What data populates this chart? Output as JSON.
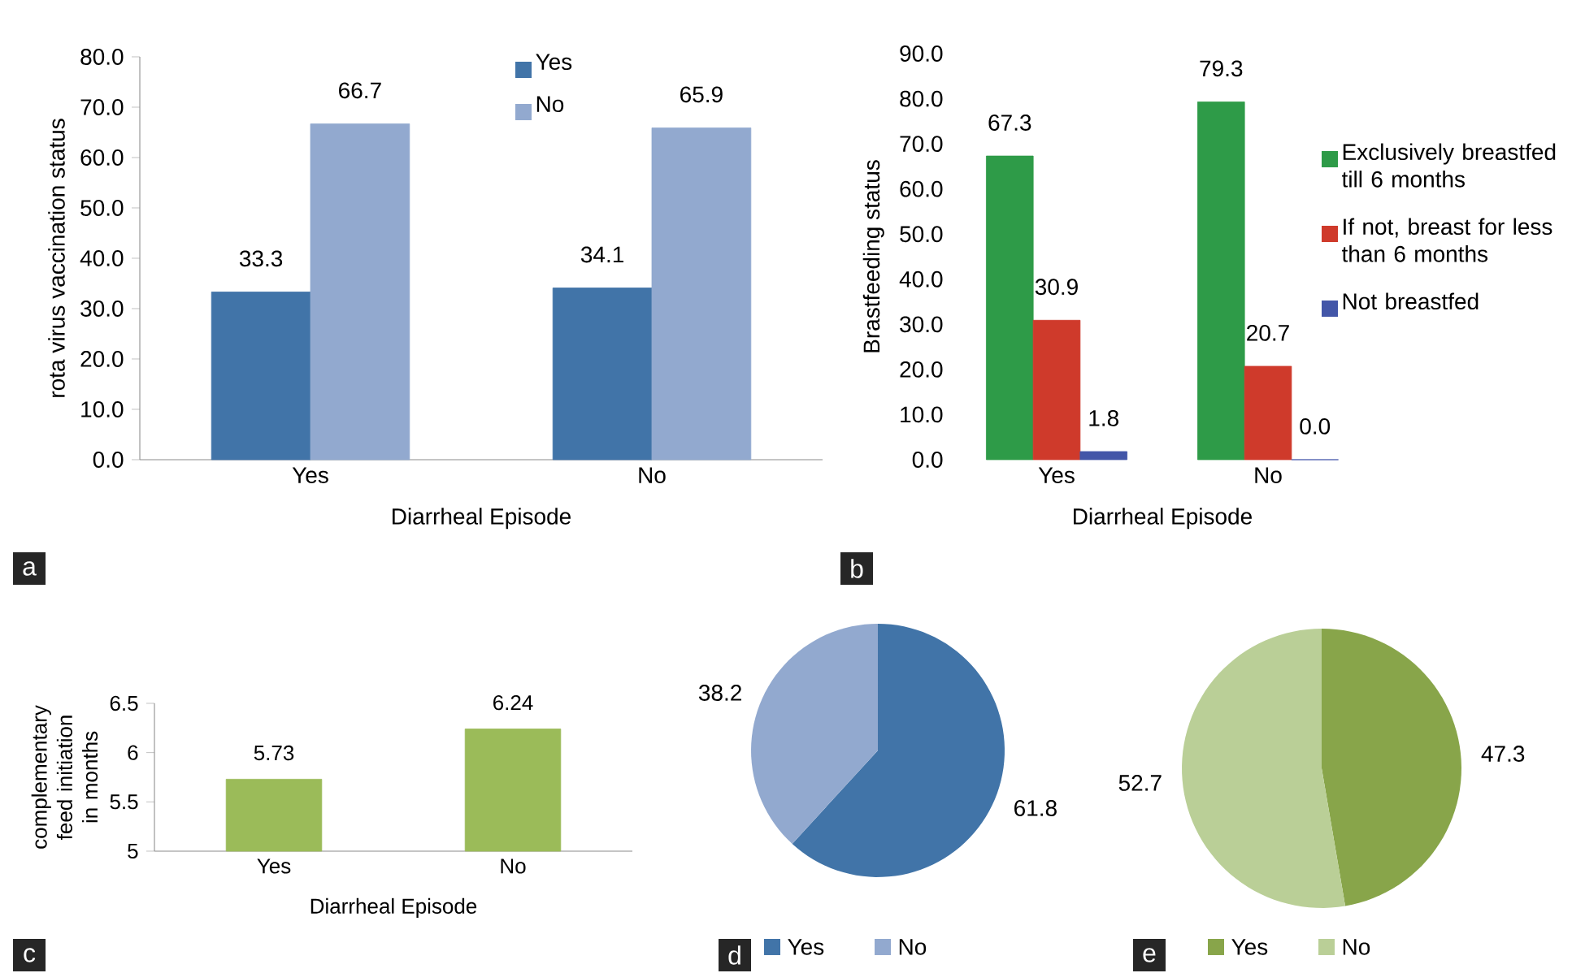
{
  "chart_data": [
    {
      "type": "bar",
      "categories": [
        "Yes",
        "No"
      ],
      "xlabel": "Diarrheal Episode",
      "ylabel": "rota virus vaccination status",
      "ylim": [
        0,
        80
      ],
      "yticks": [
        {
          "value": 0,
          "label": "0.0"
        },
        {
          "value": 10,
          "label": "10.0"
        },
        {
          "value": 20,
          "label": "20.0"
        },
        {
          "value": 30,
          "label": "30.0"
        },
        {
          "value": 40,
          "label": "40.0"
        },
        {
          "value": 50,
          "label": "50.0"
        },
        {
          "value": 60,
          "label": "60.0"
        },
        {
          "value": 70,
          "label": "70.0"
        },
        {
          "value": 80,
          "label": "80.0"
        }
      ],
      "series": [
        {
          "name": "Yes",
          "color": "#4174a8",
          "values": [
            33.3,
            34.1
          ],
          "value_labels": [
            "33.3",
            "34.1"
          ]
        },
        {
          "name": "No",
          "color": "#92a9cf",
          "values": [
            66.7,
            65.9
          ],
          "value_labels": [
            "66.7",
            "65.9"
          ]
        }
      ],
      "legend": "top right",
      "annotations": [
        "a"
      ]
    },
    {
      "type": "bar",
      "categories": [
        "Yes",
        "No"
      ],
      "xlabel": "Diarrheal Episode",
      "ylabel": "Brastfeeding status",
      "ylim": [
        0,
        90
      ],
      "yticks": [
        {
          "value": 0,
          "label": "0.0"
        },
        {
          "value": 10,
          "label": "10.0"
        },
        {
          "value": 20,
          "label": "20.0"
        },
        {
          "value": 30,
          "label": "30.0"
        },
        {
          "value": 40,
          "label": "40.0"
        },
        {
          "value": 50,
          "label": "50.0"
        },
        {
          "value": 60,
          "label": "60.0"
        },
        {
          "value": 70,
          "label": "70.0"
        },
        {
          "value": 80,
          "label": "80.0"
        },
        {
          "value": 90,
          "label": "90.0"
        }
      ],
      "series": [
        {
          "name": "Exclusively breastfed till 6 months",
          "color": "#2e9b48",
          "values": [
            67.3,
            79.3
          ],
          "value_labels": [
            "67.3",
            "79.3"
          ]
        },
        {
          "name": "If not, breast for less than 6 months",
          "color": "#cf3a2b",
          "values": [
            30.9,
            20.7
          ],
          "value_labels": [
            "30.9",
            "20.7"
          ]
        },
        {
          "name": "Not breastfed",
          "color": "#4356a8",
          "values": [
            1.8,
            0.0
          ],
          "value_labels": [
            "1.8",
            "0.0"
          ]
        }
      ],
      "legend": "right",
      "annotations": [
        "b"
      ]
    },
    {
      "type": "bar",
      "categories": [
        "Yes",
        "No"
      ],
      "xlabel": "Diarrheal Episode",
      "ylabel": "complementary feed initiation in months",
      "ylim": [
        5,
        6.5
      ],
      "yticks": [
        5,
        5.5,
        6,
        6.5
      ],
      "series": [
        {
          "color": "#9bbb59",
          "values": [
            5.73,
            6.24
          ],
          "value_labels": [
            "5.73",
            "6.24"
          ]
        }
      ],
      "annotations": [
        "c"
      ]
    },
    {
      "type": "pie",
      "categories": [
        "Yes",
        "No"
      ],
      "values": [
        61.8,
        38.2
      ],
      "colors": [
        "#4174a8",
        "#92a9cf"
      ],
      "value_labels": [
        "61.8",
        "38.2"
      ],
      "legend": "bottom",
      "annotations": [
        "d"
      ]
    },
    {
      "type": "pie",
      "categories": [
        "Yes",
        "No"
      ],
      "values": [
        47.3,
        52.7
      ],
      "colors": [
        "#88a54a",
        "#bacf97"
      ],
      "value_labels": [
        "47.3",
        "52.7"
      ],
      "legend": "bottom",
      "annotations": [
        "e"
      ]
    }
  ]
}
